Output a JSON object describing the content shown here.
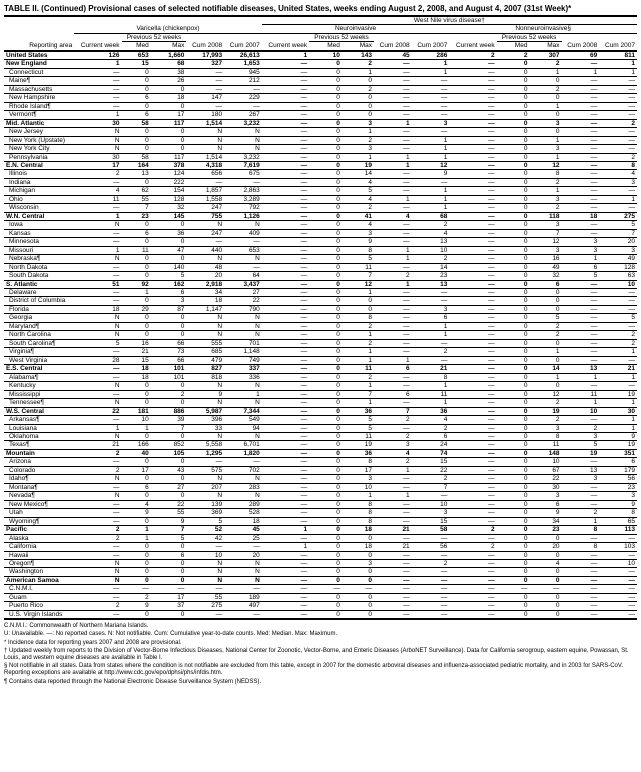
{
  "title": "TABLE II. (Continued) Provisional cases of selected notifiable diseases, United States, weeks ending August 2, 2008, and August 4, 2007 (31st Week)*",
  "super_header": "West Nile virus disease†",
  "col_groups": [
    "Varicella (chickenpox)",
    "Neuroinvasive",
    "Nonneuroinvasive§"
  ],
  "sub_headers": {
    "reporting_area": "Reporting area",
    "current_week": "Current week",
    "previous": "Previous 52 weeks",
    "med": "Med",
    "max": "Max",
    "cum2008": "Cum 2008",
    "cum2007": "Cum 2007"
  },
  "rows": [
    {
      "label": "United States",
      "bold": true,
      "v": [
        "126",
        "653",
        "1,660",
        "17,993",
        "26,613",
        "1",
        "10",
        "143",
        "45",
        "286",
        "2",
        "2",
        "307",
        "69",
        "811"
      ]
    },
    {
      "label": "New England",
      "bold": true,
      "v": [
        "1",
        "15",
        "68",
        "327",
        "1,653",
        "—",
        "0",
        "2",
        "—",
        "1",
        "—",
        "0",
        "2",
        "—",
        "1"
      ]
    },
    {
      "label": "Connecticut",
      "v": [
        "—",
        "0",
        "38",
        "—",
        "945",
        "—",
        "0",
        "1",
        "—",
        "1",
        "—",
        "0",
        "1",
        "1",
        "1"
      ]
    },
    {
      "label": "Maine¶",
      "v": [
        "—",
        "0",
        "26",
        "—",
        "212",
        "—",
        "0",
        "0",
        "—",
        "—",
        "—",
        "0",
        "0",
        "—",
        "—"
      ]
    },
    {
      "label": "Massachusetts",
      "v": [
        "—",
        "0",
        "0",
        "—",
        "—",
        "—",
        "0",
        "2",
        "—",
        "—",
        "—",
        "0",
        "2",
        "—",
        "—"
      ]
    },
    {
      "label": "New Hampshire",
      "v": [
        "—",
        "6",
        "18",
        "147",
        "229",
        "—",
        "0",
        "0",
        "—",
        "—",
        "—",
        "0",
        "0",
        "—",
        "—"
      ]
    },
    {
      "label": "Rhode Island¶",
      "v": [
        "—",
        "0",
        "0",
        "—",
        "—",
        "—",
        "0",
        "0",
        "—",
        "—",
        "—",
        "0",
        "1",
        "—",
        "—"
      ]
    },
    {
      "label": "Vermont¶",
      "v": [
        "1",
        "6",
        "17",
        "180",
        "267",
        "—",
        "0",
        "0",
        "—",
        "—",
        "—",
        "0",
        "0",
        "—",
        "—"
      ]
    },
    {
      "label": "Mid. Atlantic",
      "bold": true,
      "v": [
        "30",
        "58",
        "117",
        "1,514",
        "3,232",
        "—",
        "0",
        "3",
        "1",
        "3",
        "—",
        "0",
        "3",
        "—",
        "2"
      ]
    },
    {
      "label": "New Jersey",
      "v": [
        "N",
        "0",
        "0",
        "N",
        "N",
        "—",
        "0",
        "1",
        "—",
        "—",
        "—",
        "0",
        "0",
        "—",
        "—"
      ]
    },
    {
      "label": "New York (Upstate)",
      "v": [
        "N",
        "0",
        "0",
        "N",
        "N",
        "—",
        "0",
        "2",
        "—",
        "1",
        "—",
        "0",
        "1",
        "—",
        "—"
      ]
    },
    {
      "label": "New York City",
      "v": [
        "N",
        "0",
        "0",
        "N",
        "N",
        "—",
        "0",
        "3",
        "—",
        "1",
        "—",
        "0",
        "3",
        "—",
        "—"
      ]
    },
    {
      "label": "Pennsylvania",
      "v": [
        "30",
        "58",
        "117",
        "1,514",
        "3,232",
        "—",
        "0",
        "1",
        "1",
        "1",
        "—",
        "0",
        "1",
        "—",
        "2"
      ]
    },
    {
      "label": "E.N. Central",
      "bold": true,
      "v": [
        "17",
        "164",
        "378",
        "4,318",
        "7,619",
        "—",
        "0",
        "19",
        "1",
        "12",
        "—",
        "0",
        "12",
        "—",
        "8"
      ]
    },
    {
      "label": "Illinois",
      "v": [
        "2",
        "13",
        "124",
        "656",
        "675",
        "—",
        "0",
        "14",
        "—",
        "9",
        "—",
        "0",
        "8",
        "—",
        "4"
      ]
    },
    {
      "label": "Indiana",
      "v": [
        "—",
        "0",
        "222",
        "—",
        "—",
        "—",
        "0",
        "4",
        "—",
        "—",
        "—",
        "0",
        "2",
        "—",
        "3"
      ]
    },
    {
      "label": "Michigan",
      "v": [
        "4",
        "62",
        "154",
        "1,857",
        "2,863",
        "—",
        "0",
        "5",
        "—",
        "1",
        "—",
        "0",
        "1",
        "—",
        "—"
      ]
    },
    {
      "label": "Ohio",
      "v": [
        "11",
        "55",
        "128",
        "1,558",
        "3,289",
        "—",
        "0",
        "4",
        "1",
        "1",
        "—",
        "0",
        "3",
        "—",
        "1"
      ]
    },
    {
      "label": "Wisconsin",
      "v": [
        "—",
        "7",
        "32",
        "247",
        "792",
        "—",
        "0",
        "2",
        "—",
        "1",
        "—",
        "0",
        "2",
        "—",
        "—"
      ]
    },
    {
      "label": "W.N. Central",
      "bold": true,
      "v": [
        "1",
        "23",
        "145",
        "755",
        "1,126",
        "—",
        "0",
        "41",
        "4",
        "68",
        "—",
        "0",
        "118",
        "18",
        "275"
      ]
    },
    {
      "label": "Iowa",
      "v": [
        "N",
        "0",
        "0",
        "N",
        "N",
        "—",
        "0",
        "4",
        "—",
        "2",
        "—",
        "0",
        "3",
        "—",
        "5"
      ]
    },
    {
      "label": "Kansas",
      "v": [
        "—",
        "6",
        "36",
        "247",
        "409",
        "—",
        "0",
        "3",
        "—",
        "4",
        "—",
        "0",
        "7",
        "—",
        "7"
      ]
    },
    {
      "label": "Minnesota",
      "v": [
        "—",
        "0",
        "0",
        "—",
        "—",
        "—",
        "0",
        "9",
        "—",
        "13",
        "—",
        "0",
        "12",
        "3",
        "20"
      ]
    },
    {
      "label": "Missouri",
      "v": [
        "1",
        "11",
        "47",
        "440",
        "653",
        "—",
        "0",
        "8",
        "1",
        "10",
        "—",
        "0",
        "3",
        "3",
        "3"
      ]
    },
    {
      "label": "Nebraska¶",
      "v": [
        "N",
        "0",
        "0",
        "N",
        "N",
        "—",
        "0",
        "5",
        "1",
        "2",
        "—",
        "0",
        "16",
        "1",
        "49"
      ]
    },
    {
      "label": "North Dakota",
      "v": [
        "—",
        "0",
        "140",
        "48",
        "—",
        "—",
        "0",
        "11",
        "—",
        "14",
        "—",
        "0",
        "49",
        "6",
        "128"
      ]
    },
    {
      "label": "South Dakota",
      "v": [
        "—",
        "0",
        "5",
        "20",
        "64",
        "—",
        "0",
        "7",
        "2",
        "23",
        "—",
        "0",
        "32",
        "5",
        "63"
      ]
    },
    {
      "label": "S. Atlantic",
      "bold": true,
      "v": [
        "51",
        "92",
        "162",
        "2,918",
        "3,437",
        "—",
        "0",
        "12",
        "1",
        "13",
        "—",
        "0",
        "6",
        "—",
        "10"
      ]
    },
    {
      "label": "Delaware",
      "v": [
        "—",
        "1",
        "6",
        "34",
        "27",
        "—",
        "0",
        "1",
        "—",
        "—",
        "—",
        "0",
        "0",
        "—",
        "—"
      ]
    },
    {
      "label": "District of Columbia",
      "v": [
        "—",
        "0",
        "3",
        "18",
        "22",
        "—",
        "0",
        "0",
        "—",
        "—",
        "—",
        "0",
        "0",
        "—",
        "—"
      ]
    },
    {
      "label": "Florida",
      "v": [
        "18",
        "29",
        "87",
        "1,147",
        "790",
        "—",
        "0",
        "0",
        "—",
        "3",
        "—",
        "0",
        "0",
        "—",
        "—"
      ]
    },
    {
      "label": "Georgia",
      "v": [
        "N",
        "0",
        "0",
        "N",
        "N",
        "—",
        "0",
        "8",
        "—",
        "6",
        "—",
        "0",
        "5",
        "—",
        "5"
      ]
    },
    {
      "label": "Maryland¶",
      "v": [
        "N",
        "0",
        "0",
        "N",
        "N",
        "—",
        "0",
        "2",
        "—",
        "1",
        "—",
        "0",
        "2",
        "—",
        "—"
      ]
    },
    {
      "label": "North Carolina",
      "v": [
        "N",
        "0",
        "0",
        "N",
        "N",
        "—",
        "0",
        "1",
        "—",
        "1",
        "—",
        "0",
        "2",
        "—",
        "2"
      ]
    },
    {
      "label": "South Carolina¶",
      "v": [
        "5",
        "16",
        "66",
        "555",
        "701",
        "—",
        "0",
        "2",
        "—",
        "—",
        "—",
        "0",
        "0",
        "—",
        "2"
      ]
    },
    {
      "label": "Virginia¶",
      "v": [
        "—",
        "21",
        "73",
        "685",
        "1,148",
        "—",
        "0",
        "1",
        "—",
        "2",
        "—",
        "0",
        "1",
        "—",
        "1"
      ]
    },
    {
      "label": "West Virginia",
      "v": [
        "28",
        "15",
        "66",
        "479",
        "749",
        "—",
        "0",
        "1",
        "1",
        "—",
        "—",
        "0",
        "0",
        "—",
        "—"
      ]
    },
    {
      "label": "E.S. Central",
      "bold": true,
      "v": [
        "—",
        "18",
        "101",
        "827",
        "337",
        "—",
        "0",
        "11",
        "6",
        "21",
        "—",
        "0",
        "14",
        "13",
        "21"
      ]
    },
    {
      "label": "Alabama¶",
      "v": [
        "—",
        "18",
        "101",
        "818",
        "336",
        "—",
        "0",
        "2",
        "—",
        "8",
        "—",
        "0",
        "1",
        "1",
        "1"
      ]
    },
    {
      "label": "Kentucky",
      "v": [
        "N",
        "0",
        "0",
        "N",
        "N",
        "—",
        "0",
        "1",
        "—",
        "1",
        "—",
        "0",
        "0",
        "—",
        "—"
      ]
    },
    {
      "label": "Mississippi",
      "v": [
        "—",
        "0",
        "2",
        "9",
        "1",
        "—",
        "0",
        "7",
        "6",
        "11",
        "—",
        "0",
        "12",
        "11",
        "19"
      ]
    },
    {
      "label": "Tennessee¶",
      "v": [
        "N",
        "0",
        "0",
        "N",
        "N",
        "—",
        "0",
        "1",
        "—",
        "1",
        "—",
        "0",
        "2",
        "1",
        "1"
      ]
    },
    {
      "label": "W.S. Central",
      "bold": true,
      "v": [
        "22",
        "181",
        "886",
        "5,987",
        "7,344",
        "—",
        "0",
        "36",
        "7",
        "36",
        "—",
        "0",
        "19",
        "10",
        "30"
      ]
    },
    {
      "label": "Arkansas¶",
      "v": [
        "—",
        "10",
        "39",
        "396",
        "549",
        "—",
        "0",
        "5",
        "2",
        "4",
        "—",
        "0",
        "2",
        "—",
        "1"
      ]
    },
    {
      "label": "Louisiana",
      "v": [
        "1",
        "1",
        "7",
        "33",
        "94",
        "—",
        "0",
        "5",
        "—",
        "2",
        "—",
        "0",
        "3",
        "2",
        "1"
      ]
    },
    {
      "label": "Oklahoma",
      "v": [
        "N",
        "0",
        "0",
        "N",
        "N",
        "—",
        "0",
        "11",
        "2",
        "6",
        "—",
        "0",
        "8",
        "3",
        "9"
      ]
    },
    {
      "label": "Texas¶",
      "v": [
        "21",
        "166",
        "852",
        "5,558",
        "6,701",
        "—",
        "0",
        "19",
        "3",
        "24",
        "—",
        "0",
        "11",
        "5",
        "19"
      ]
    },
    {
      "label": "Mountain",
      "bold": true,
      "v": [
        "2",
        "40",
        "105",
        "1,295",
        "1,820",
        "—",
        "0",
        "36",
        "4",
        "74",
        "—",
        "0",
        "148",
        "19",
        "351"
      ]
    },
    {
      "label": "Arizona",
      "v": [
        "—",
        "0",
        "0",
        "—",
        "—",
        "—",
        "0",
        "8",
        "2",
        "15",
        "—",
        "0",
        "10",
        "—",
        "6"
      ]
    },
    {
      "label": "Colorado",
      "v": [
        "2",
        "17",
        "43",
        "575",
        "702",
        "—",
        "0",
        "17",
        "1",
        "22",
        "—",
        "0",
        "67",
        "13",
        "179"
      ]
    },
    {
      "label": "Idaho¶",
      "v": [
        "N",
        "0",
        "0",
        "N",
        "N",
        "—",
        "0",
        "3",
        "—",
        "2",
        "—",
        "0",
        "22",
        "3",
        "56"
      ]
    },
    {
      "label": "Montana¶",
      "v": [
        "—",
        "6",
        "27",
        "207",
        "283",
        "—",
        "0",
        "10",
        "—",
        "7",
        "—",
        "0",
        "30",
        "—",
        "23"
      ]
    },
    {
      "label": "Nevada¶",
      "v": [
        "N",
        "0",
        "0",
        "N",
        "N",
        "—",
        "0",
        "1",
        "1",
        "—",
        "—",
        "0",
        "3",
        "—",
        "3"
      ]
    },
    {
      "label": "New Mexico¶",
      "v": [
        "—",
        "4",
        "22",
        "139",
        "289",
        "—",
        "0",
        "8",
        "—",
        "10",
        "—",
        "0",
        "6",
        "—",
        "9"
      ]
    },
    {
      "label": "Utah",
      "v": [
        "—",
        "9",
        "55",
        "369",
        "528",
        "—",
        "0",
        "8",
        "—",
        "3",
        "—",
        "0",
        "9",
        "2",
        "8"
      ]
    },
    {
      "label": "Wyoming¶",
      "v": [
        "—",
        "0",
        "9",
        "5",
        "18",
        "—",
        "0",
        "8",
        "—",
        "15",
        "—",
        "0",
        "34",
        "1",
        "65"
      ]
    },
    {
      "label": "Pacific",
      "bold": true,
      "v": [
        "2",
        "1",
        "7",
        "52",
        "45",
        "1",
        "0",
        "18",
        "21",
        "58",
        "2",
        "0",
        "23",
        "8",
        "113"
      ]
    },
    {
      "label": "Alaska",
      "v": [
        "2",
        "1",
        "5",
        "42",
        "25",
        "—",
        "0",
        "0",
        "—",
        "—",
        "—",
        "0",
        "0",
        "—",
        "—"
      ]
    },
    {
      "label": "California",
      "v": [
        "—",
        "0",
        "0",
        "—",
        "—",
        "1",
        "0",
        "18",
        "21",
        "56",
        "2",
        "0",
        "20",
        "8",
        "103"
      ]
    },
    {
      "label": "Hawaii",
      "v": [
        "—",
        "0",
        "6",
        "10",
        "20",
        "—",
        "0",
        "0",
        "—",
        "—",
        "—",
        "0",
        "0",
        "—",
        "—"
      ]
    },
    {
      "label": "Oregon¶",
      "v": [
        "N",
        "0",
        "0",
        "N",
        "N",
        "—",
        "0",
        "3",
        "—",
        "2",
        "—",
        "0",
        "4",
        "—",
        "10"
      ]
    },
    {
      "label": "Washington",
      "v": [
        "N",
        "0",
        "0",
        "N",
        "N",
        "—",
        "0",
        "0",
        "—",
        "—",
        "—",
        "0",
        "0",
        "—",
        "—"
      ]
    },
    {
      "label": "American Samoa",
      "bold": true,
      "v": [
        "N",
        "0",
        "0",
        "N",
        "N",
        "—",
        "0",
        "0",
        "—",
        "—",
        "—",
        "0",
        "0",
        "—",
        "—"
      ]
    },
    {
      "label": "C.N.M.I.",
      "v": [
        "—",
        "—",
        "—",
        "—",
        "—",
        "—",
        "—",
        "—",
        "—",
        "—",
        "—",
        "—",
        "—",
        "—",
        "—"
      ]
    },
    {
      "label": "Guam",
      "v": [
        "—",
        "2",
        "17",
        "55",
        "189",
        "—",
        "0",
        "0",
        "—",
        "—",
        "—",
        "0",
        "0",
        "—",
        "—"
      ]
    },
    {
      "label": "Puerto Rico",
      "v": [
        "2",
        "9",
        "37",
        "275",
        "497",
        "—",
        "0",
        "0",
        "—",
        "—",
        "—",
        "0",
        "0",
        "—",
        "—"
      ]
    },
    {
      "label": "U.S. Virgin Islands",
      "v": [
        "—",
        "0",
        "0",
        "—",
        "—",
        "—",
        "0",
        "0",
        "—",
        "—",
        "—",
        "0",
        "0",
        "—",
        "—"
      ]
    }
  ],
  "footnotes": [
    "C.N.M.I.: Commonwealth of Northern Mariana Islands.",
    "U: Unavailable.   —: No reported cases.   N: Not notifiable.   Cum: Cumulative year-to-date counts.   Med: Median.   Max: Maximum.",
    "* Incidence data for reporting years 2007 and 2008 are provisional.",
    "† Updated weekly from reports to the Division of Vector-Borne Infectious Diseases, National Center for Zoonotic, Vector-Borne, and Enteric Diseases (ArboNET Surveillance). Data for California serogroup, eastern equine, Powassan, St. Louis, and western equine diseases are available in Table I.",
    "§ Not notifiable in all states. Data from states where the condition is not notifiable are excluded from this table, except in 2007 for the domestic arboviral diseases and influenza-associated pediatric mortality, and in 2003 for SARS-CoV. Reporting exceptions are available at http://www.cdc.gov/epo/dphsi/phs/infdis.htm.",
    "¶ Contains data reported through the National Electronic Disease Surveillance System (NEDSS)."
  ]
}
